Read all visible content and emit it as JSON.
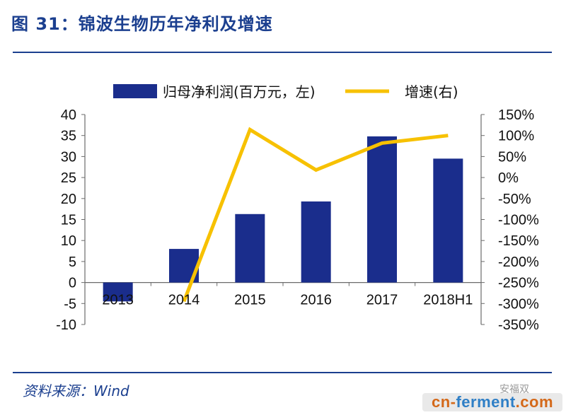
{
  "figure": {
    "title": "图 31：锦波生物历年净利及增速",
    "source": "资料来源：Wind"
  },
  "watermark": "安福双",
  "brand": {
    "part1": "cn-",
    "part2": "ferment",
    "part3": ".com"
  },
  "chart_data": {
    "type": "bar+line",
    "categories": [
      "2013",
      "2014",
      "2015",
      "2016",
      "2017",
      "2018H1"
    ],
    "series": [
      {
        "name": "归母净利润(百万元，左)",
        "type": "bar",
        "axis": "left",
        "color": "#1a2d8c",
        "values": [
          -4.5,
          8.0,
          16.3,
          19.3,
          34.8,
          29.5
        ]
      },
      {
        "name": "增速(右)",
        "type": "line",
        "axis": "right",
        "color": "#f7c100",
        "values": [
          null,
          -295,
          114,
          18,
          82,
          100
        ]
      }
    ],
    "y_left": {
      "range": [
        -10,
        40
      ],
      "ticks": [
        "-10",
        "-5",
        "0",
        "5",
        "10",
        "15",
        "20",
        "25",
        "30",
        "35",
        "40"
      ]
    },
    "y_right": {
      "range": [
        -350,
        150
      ],
      "ticks": [
        "-350%",
        "-300%",
        "-250%",
        "-200%",
        "-150%",
        "-100%",
        "-50%",
        "0%",
        "50%",
        "100%",
        "150%"
      ]
    },
    "legend_position": "top",
    "grid": false
  }
}
